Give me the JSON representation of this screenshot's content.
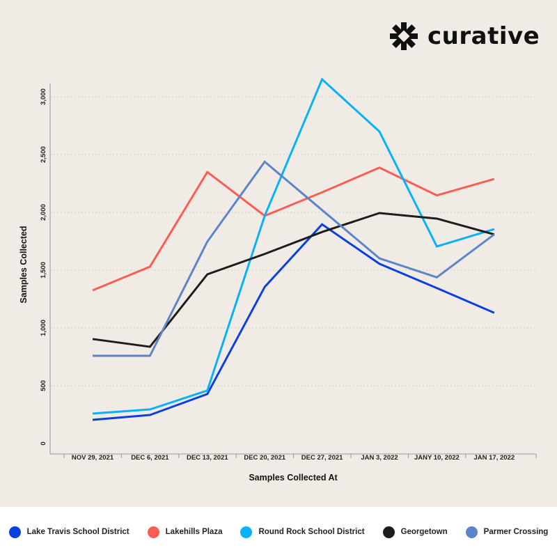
{
  "brand": {
    "name": "curative"
  },
  "chart_data": {
    "type": "line",
    "title": "",
    "xlabel": "Samples Collected At",
    "ylabel": "Samples Collected",
    "categories": [
      "NOV 29, 2021",
      "DEC 6, 2021",
      "DEC 13, 2021",
      "DEC 20, 2021",
      "DEC 27, 2021",
      "JAN 3, 2022",
      "JANY 10, 2022",
      "JAN 17, 2022"
    ],
    "yticks": [
      0,
      500,
      1000,
      1500,
      2000,
      2500,
      3000
    ],
    "ytick_labels": [
      "0",
      "500",
      "1,000",
      "1,500",
      "2,000",
      "2,500",
      "3,000"
    ],
    "ylim": [
      0,
      3250
    ],
    "grid": true,
    "legend_position": "bottom",
    "series": [
      {
        "name": "Lake Travis School District",
        "color": "#0a3fe0",
        "values": [
          205,
          247,
          428,
          1355,
          1896,
          1555,
          1345,
          1131
        ]
      },
      {
        "name": "Lakehills Plaza",
        "color": "#fa5d55",
        "values": [
          1325,
          1530,
          2349,
          1970,
          2173,
          2387,
          2147,
          2289
        ]
      },
      {
        "name": "Round Rock School District",
        "color": "#08b2f8",
        "values": [
          259,
          295,
          458,
          1970,
          3151,
          2699,
          1705,
          1855
        ]
      },
      {
        "name": "Georgetown",
        "color": "#1d1d1b",
        "values": [
          904,
          837,
          1464,
          1640,
          1830,
          1994,
          1946,
          1809
        ]
      },
      {
        "name": "Parmer Crossing",
        "color": "#5b85c8",
        "values": [
          759,
          759,
          1747,
          2438,
          2020,
          1602,
          1438,
          1809
        ]
      }
    ]
  }
}
